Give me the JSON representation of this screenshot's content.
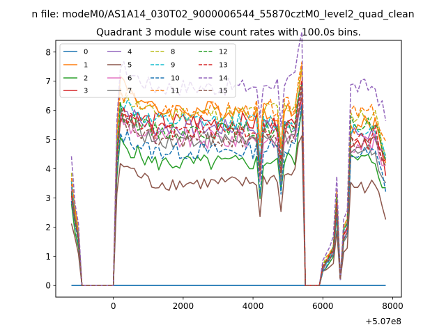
{
  "suptitle": "n file: modeM0/AS1A14_030T02_9000006544_55870cztM0_level2_quad_clean",
  "chart_data": {
    "type": "line",
    "title": "Quadrant 3 module wise count rates with 100.0s bins.",
    "xlabel": "",
    "ylabel": "",
    "x_offset_label": "+5.07e8",
    "xlim": [
      -1650,
      8250
    ],
    "ylim": [
      -0.4,
      8.4
    ],
    "xticks": [
      0,
      2000,
      4000,
      6000,
      8000
    ],
    "xtick_labels": [
      "0",
      "2000",
      "4000",
      "6000",
      "8000"
    ],
    "yticks": [
      0,
      1,
      2,
      3,
      4,
      5,
      6,
      7,
      8
    ],
    "ytick_labels": [
      "0",
      "1",
      "2",
      "3",
      "4",
      "5",
      "6",
      "7",
      "8"
    ],
    "grid": false,
    "legend_position": "top-left",
    "legend_columns": 4,
    "x_segments": [
      [
        -1200,
        -900
      ],
      [
        0,
        5400
      ],
      [
        6000,
        7800
      ]
    ],
    "series": [
      {
        "name": "0",
        "color": "#1f77b4",
        "dash": "solid",
        "base": 0.0,
        "peak": 0.0,
        "lvl_end": 0.0,
        "late": 0.0,
        "noise": 0.0
      },
      {
        "name": "1",
        "color": "#ff7f0e",
        "dash": "solid",
        "base": 6.0,
        "peak": 7.1,
        "lvl_end": 5.9,
        "late": 5.5,
        "noise": 0.35
      },
      {
        "name": "2",
        "color": "#2ca02c",
        "dash": "solid",
        "base": 4.2,
        "peak": 4.9,
        "lvl_end": 4.4,
        "late": 4.3,
        "noise": 0.3
      },
      {
        "name": "3",
        "color": "#d62728",
        "dash": "solid",
        "base": 5.6,
        "peak": 5.9,
        "lvl_end": 5.4,
        "late": 5.0,
        "noise": 0.35
      },
      {
        "name": "4",
        "color": "#9467bd",
        "dash": "solid",
        "base": 5.4,
        "peak": 6.1,
        "lvl_end": 5.5,
        "late": 5.2,
        "noise": 0.3
      },
      {
        "name": "5",
        "color": "#8c564b",
        "dash": "solid",
        "base": 3.5,
        "peak": 4.2,
        "lvl_end": 3.9,
        "late": 3.4,
        "noise": 0.25
      },
      {
        "name": "6",
        "color": "#e377c2",
        "dash": "solid",
        "base": 5.0,
        "peak": 5.7,
        "lvl_end": 5.1,
        "late": 4.9,
        "noise": 0.35
      },
      {
        "name": "7",
        "color": "#7f7f7f",
        "dash": "solid",
        "base": 5.0,
        "peak": 5.8,
        "lvl_end": 4.9,
        "late": 4.6,
        "noise": 0.3
      },
      {
        "name": "8",
        "color": "#bcbd22",
        "dash": "dashed",
        "base": 5.9,
        "peak": 6.5,
        "lvl_end": 6.2,
        "late": 5.8,
        "noise": 0.3
      },
      {
        "name": "9",
        "color": "#17becf",
        "dash": "dashed",
        "base": 5.6,
        "peak": 6.3,
        "lvl_end": 5.6,
        "late": 5.4,
        "noise": 0.3
      },
      {
        "name": "10",
        "color": "#1f77b4",
        "dash": "dashed",
        "base": 4.6,
        "peak": 5.2,
        "lvl_end": 4.8,
        "late": 4.5,
        "noise": 0.3
      },
      {
        "name": "11",
        "color": "#ff7f0e",
        "dash": "dashed",
        "base": 6.0,
        "peak": 6.6,
        "lvl_end": 6.2,
        "late": 5.9,
        "noise": 0.3
      },
      {
        "name": "12",
        "color": "#2ca02c",
        "dash": "dashed",
        "base": 5.3,
        "peak": 6.0,
        "lvl_end": 5.4,
        "late": 5.5,
        "noise": 0.3
      },
      {
        "name": "13",
        "color": "#d62728",
        "dash": "dashed",
        "base": 5.3,
        "peak": 5.9,
        "lvl_end": 5.5,
        "late": 5.2,
        "noise": 0.3
      },
      {
        "name": "14",
        "color": "#9467bd",
        "dash": "dashed",
        "base": 6.8,
        "peak": 7.5,
        "lvl_end": 7.1,
        "late": 6.8,
        "noise": 0.3
      },
      {
        "name": "15",
        "color": "#8c564b",
        "dash": "dashed",
        "base": 5.0,
        "peak": 5.6,
        "lvl_end": 5.2,
        "late": 4.9,
        "noise": 0.3
      }
    ]
  }
}
